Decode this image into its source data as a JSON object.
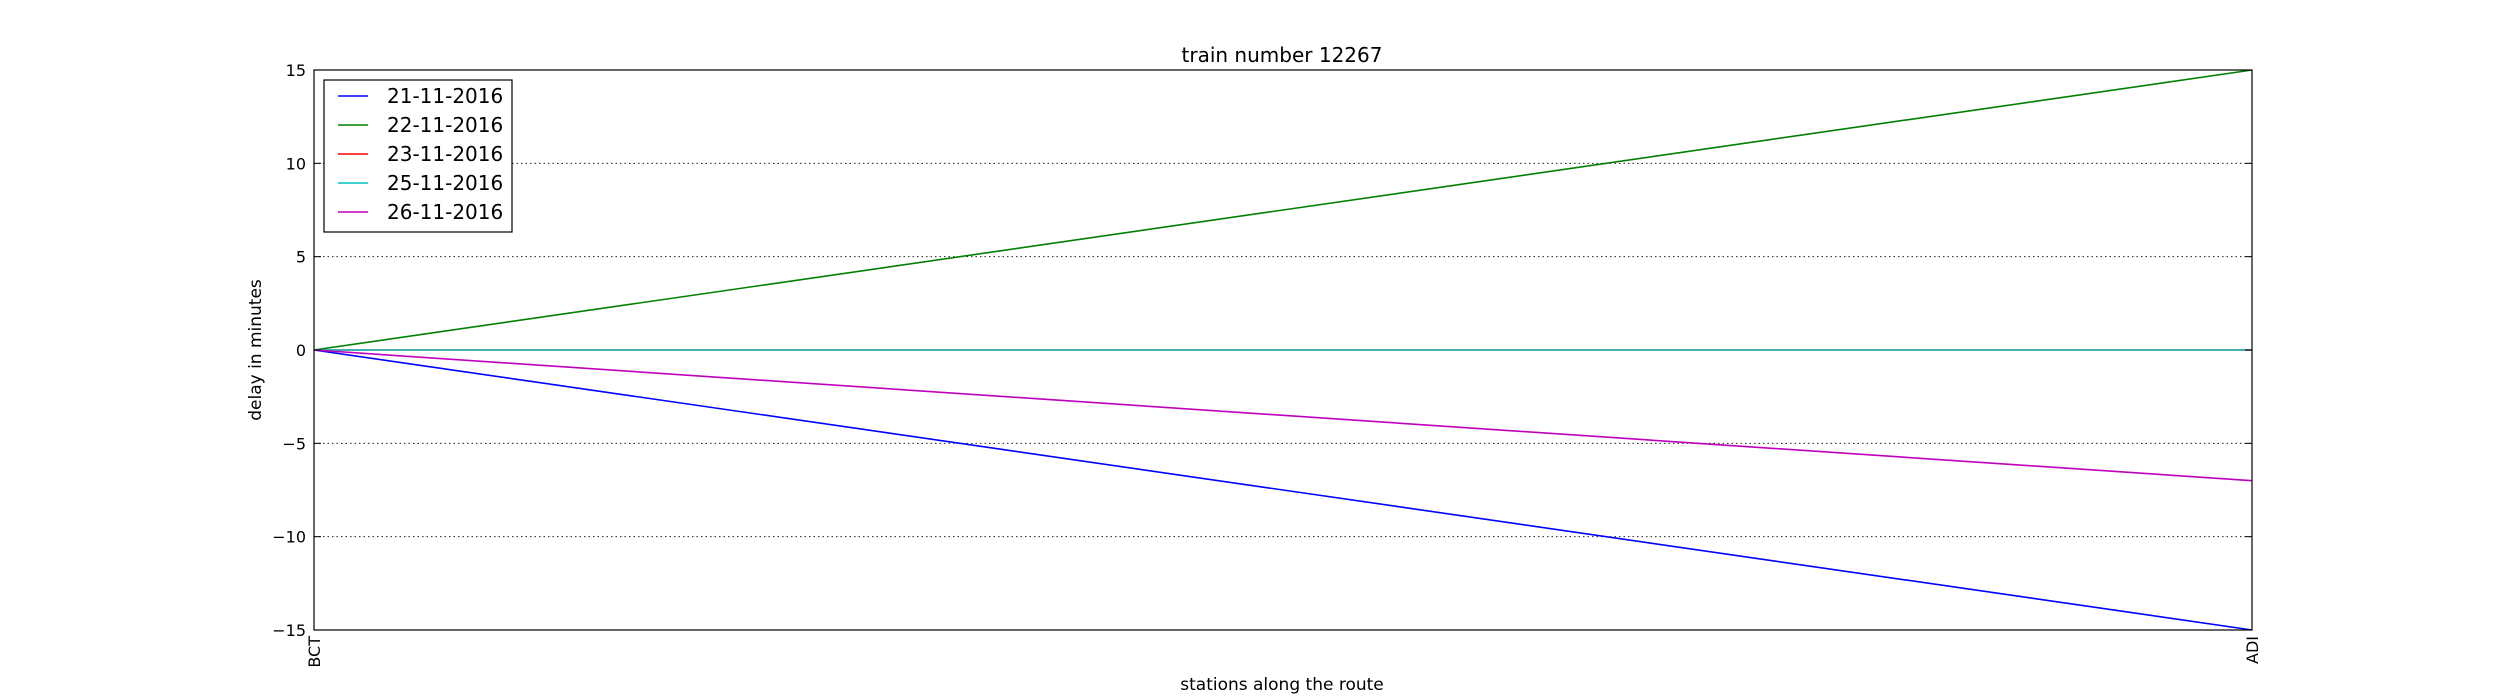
{
  "chart_data": {
    "type": "line",
    "title": "train number 12267",
    "xlabel": "stations along the route",
    "ylabel": "delay in minutes",
    "categories": [
      "BCT",
      "ADI"
    ],
    "ylim": [
      -15,
      15
    ],
    "yticks": [
      -15,
      -10,
      -5,
      0,
      5,
      10,
      15
    ],
    "ytick_labels": [
      "−15",
      "−10",
      "−5",
      "0",
      "5",
      "10",
      "15"
    ],
    "grid": "horizontal dotted",
    "legend_position": "upper-left",
    "series": [
      {
        "name": "21-11-2016",
        "color": "#0000ff",
        "values": [
          0,
          -15
        ]
      },
      {
        "name": "22-11-2016",
        "color": "#008000",
        "values": [
          0,
          15
        ]
      },
      {
        "name": "23-11-2016",
        "color": "#ff0000",
        "values": [
          0,
          0
        ]
      },
      {
        "name": "25-11-2016",
        "color": "#00bfbf",
        "values": [
          0,
          0
        ]
      },
      {
        "name": "26-11-2016",
        "color": "#bf00bf",
        "values": [
          0,
          -7
        ]
      }
    ]
  }
}
